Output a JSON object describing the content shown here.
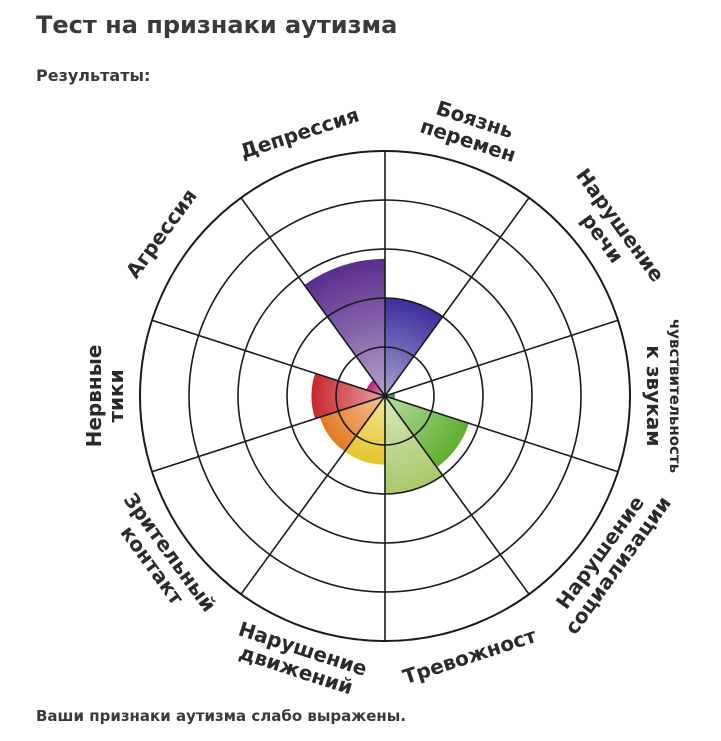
{
  "page": {
    "title": "Тест на признаки аутизма",
    "results_label": "Результаты:",
    "conclusion": "Ваши признаки аутизма слабо выражены."
  },
  "chart_data": {
    "type": "polar-area",
    "title": "",
    "rings": 5,
    "max": 5,
    "grid": true,
    "categories": [
      {
        "label": [
          "Боязнь",
          "перемен"
        ],
        "value": 2,
        "color": "#3a2f9c"
      },
      {
        "label": [
          "Нарушение",
          "речи"
        ],
        "value": 0,
        "color": "#3b4fb5"
      },
      {
        "label": [
          "чувствительность",
          "к звукам"
        ],
        "value": 0.2,
        "color": "#2d7d4a"
      },
      {
        "label": [
          "Нарушение",
          "социализации"
        ],
        "value": 1.8,
        "color": "#5fae2e"
      },
      {
        "label": [
          "Тревожност"
        ],
        "value": 2.0,
        "color": "#a9c96a"
      },
      {
        "label": [
          "Нарушение",
          "движений"
        ],
        "value": 1.4,
        "color": "#e5c52a"
      },
      {
        "label": [
          "Зрительный",
          "контакт"
        ],
        "value": 1.4,
        "color": "#e47a22"
      },
      {
        "label": [
          "Нервные",
          "тики"
        ],
        "value": 1.5,
        "color": "#c8282e"
      },
      {
        "label": [
          "Агрессия"
        ],
        "value": 0.4,
        "color": "#c2187a"
      },
      {
        "label": [
          "Депрессия"
        ],
        "value": 2.8,
        "color": "#5a2d8c"
      }
    ]
  }
}
